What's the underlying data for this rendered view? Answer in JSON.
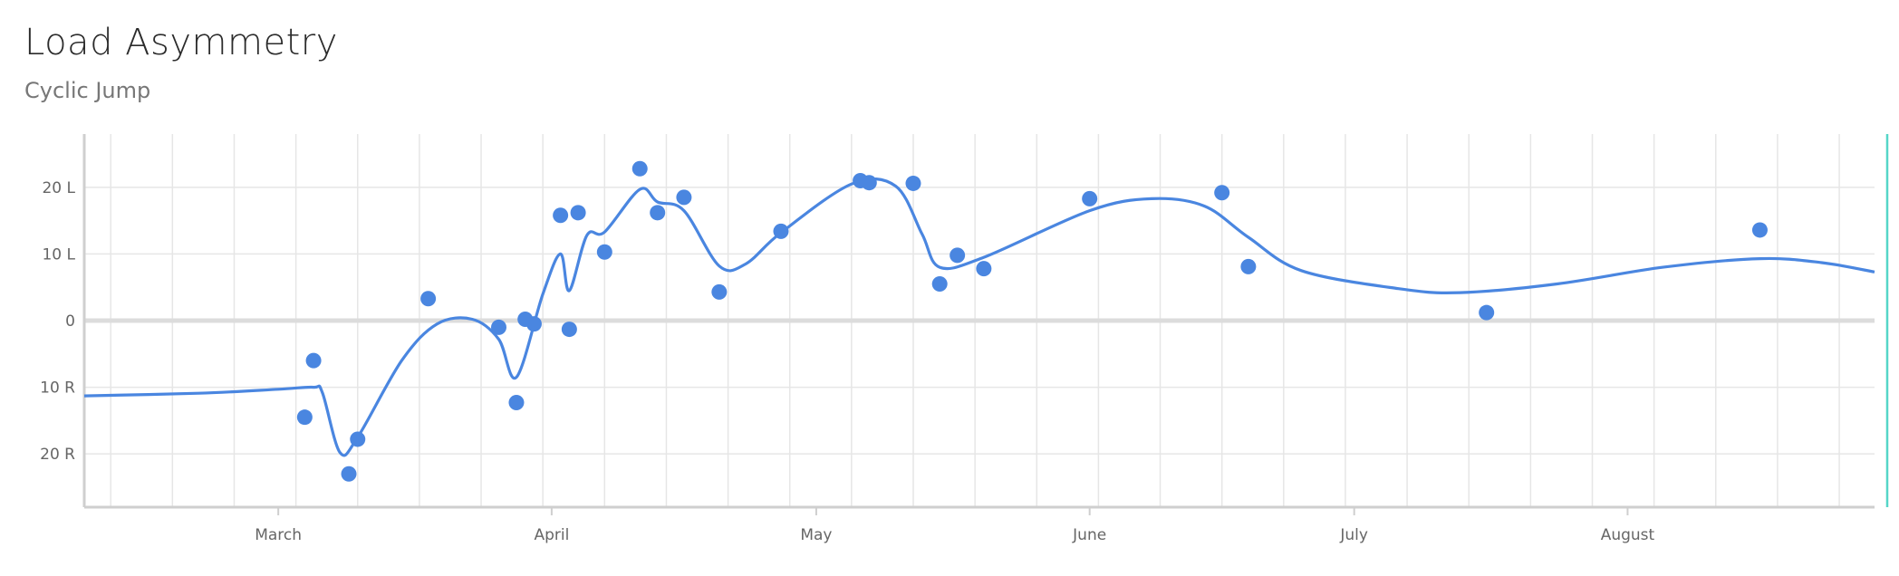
{
  "header": {
    "title": "Load Asymmetry",
    "subtitle": "Cyclic Jump"
  },
  "colors": {
    "series": "#4a86e0",
    "grid": "#e6e6e6",
    "zero_line": "#dcdcdc",
    "cursor": "#55d6c8"
  },
  "chart_data": {
    "type": "scatter",
    "title": "Load Asymmetry",
    "subtitle": "Cyclic Jump",
    "xlabel": "",
    "ylabel": "",
    "x_range": [
      "2023-02-07",
      "2023-08-29"
    ],
    "ylim": [
      -28,
      28
    ],
    "y_ticks": [
      {
        "value": 20,
        "label": "20 L"
      },
      {
        "value": 10,
        "label": "10 L"
      },
      {
        "value": 0,
        "label": "0"
      },
      {
        "value": -10,
        "label": "10 R"
      },
      {
        "value": -20,
        "label": "20 R"
      }
    ],
    "x_ticks": [
      {
        "date": "2023-03-01",
        "label": "March"
      },
      {
        "date": "2023-04-01",
        "label": "April"
      },
      {
        "date": "2023-05-01",
        "label": "May"
      },
      {
        "date": "2023-06-01",
        "label": "June"
      },
      {
        "date": "2023-07-01",
        "label": "July"
      },
      {
        "date": "2023-08-01",
        "label": "August"
      }
    ],
    "grid": true,
    "points": [
      {
        "date": "2023-03-04",
        "value": -14.5
      },
      {
        "date": "2023-03-05",
        "value": -6
      },
      {
        "date": "2023-03-09",
        "value": -23
      },
      {
        "date": "2023-03-10",
        "value": -17.8
      },
      {
        "date": "2023-03-18",
        "value": 3.3
      },
      {
        "date": "2023-03-26",
        "value": -1
      },
      {
        "date": "2023-03-28",
        "value": -12.3
      },
      {
        "date": "2023-03-29",
        "value": 0.2
      },
      {
        "date": "2023-03-30",
        "value": -0.5
      },
      {
        "date": "2023-04-02",
        "value": 15.8
      },
      {
        "date": "2023-04-03",
        "value": -1.3
      },
      {
        "date": "2023-04-04",
        "value": 16.2
      },
      {
        "date": "2023-04-07",
        "value": 10.3
      },
      {
        "date": "2023-04-11",
        "value": 22.8
      },
      {
        "date": "2023-04-13",
        "value": 16.2
      },
      {
        "date": "2023-04-16",
        "value": 18.5
      },
      {
        "date": "2023-04-20",
        "value": 4.3
      },
      {
        "date": "2023-04-27",
        "value": 13.4
      },
      {
        "date": "2023-05-06",
        "value": 21
      },
      {
        "date": "2023-05-07",
        "value": 20.7
      },
      {
        "date": "2023-05-12",
        "value": 20.6
      },
      {
        "date": "2023-05-15",
        "value": 5.5
      },
      {
        "date": "2023-05-17",
        "value": 9.8
      },
      {
        "date": "2023-05-20",
        "value": 7.8
      },
      {
        "date": "2023-06-01",
        "value": 18.3
      },
      {
        "date": "2023-06-16",
        "value": 19.2
      },
      {
        "date": "2023-06-19",
        "value": 8.1
      },
      {
        "date": "2023-07-16",
        "value": 1.2
      },
      {
        "date": "2023-08-16",
        "value": 13.6
      }
    ],
    "trend_line": [
      {
        "date": "2023-02-07",
        "value": -11.3
      },
      {
        "date": "2023-02-20",
        "value": -10.9
      },
      {
        "date": "2023-03-01",
        "value": -10.3
      },
      {
        "date": "2023-03-05",
        "value": -10
      },
      {
        "date": "2023-03-06",
        "value": -10.8
      },
      {
        "date": "2023-03-08",
        "value": -19.8
      },
      {
        "date": "2023-03-10",
        "value": -17.5
      },
      {
        "date": "2023-03-15",
        "value": -6
      },
      {
        "date": "2023-03-19",
        "value": -0.5
      },
      {
        "date": "2023-03-23",
        "value": 0.2
      },
      {
        "date": "2023-03-26",
        "value": -2.8
      },
      {
        "date": "2023-03-28",
        "value": -8.5
      },
      {
        "date": "2023-03-31",
        "value": 4
      },
      {
        "date": "2023-04-02",
        "value": 10
      },
      {
        "date": "2023-04-03",
        "value": 4.5
      },
      {
        "date": "2023-04-05",
        "value": 12.8
      },
      {
        "date": "2023-04-07",
        "value": 13.3
      },
      {
        "date": "2023-04-11",
        "value": 19.7
      },
      {
        "date": "2023-04-13",
        "value": 17.8
      },
      {
        "date": "2023-04-16",
        "value": 16.5
      },
      {
        "date": "2023-04-20",
        "value": 8.2
      },
      {
        "date": "2023-04-23",
        "value": 8.5
      },
      {
        "date": "2023-04-27",
        "value": 13.2
      },
      {
        "date": "2023-05-05",
        "value": 20.5
      },
      {
        "date": "2023-05-10",
        "value": 20.2
      },
      {
        "date": "2023-05-13",
        "value": 13
      },
      {
        "date": "2023-05-15",
        "value": 8
      },
      {
        "date": "2023-05-20",
        "value": 9.5
      },
      {
        "date": "2023-06-01",
        "value": 16.5
      },
      {
        "date": "2023-06-08",
        "value": 18.3
      },
      {
        "date": "2023-06-14",
        "value": 17.2
      },
      {
        "date": "2023-06-19",
        "value": 12.5
      },
      {
        "date": "2023-06-25",
        "value": 7.5
      },
      {
        "date": "2023-07-06",
        "value": 4.8
      },
      {
        "date": "2023-07-13",
        "value": 4.2
      },
      {
        "date": "2023-07-24",
        "value": 5.5
      },
      {
        "date": "2023-08-05",
        "value": 8
      },
      {
        "date": "2023-08-16",
        "value": 9.3
      },
      {
        "date": "2023-08-23",
        "value": 8.7
      },
      {
        "date": "2023-08-29",
        "value": 7.3
      }
    ]
  }
}
